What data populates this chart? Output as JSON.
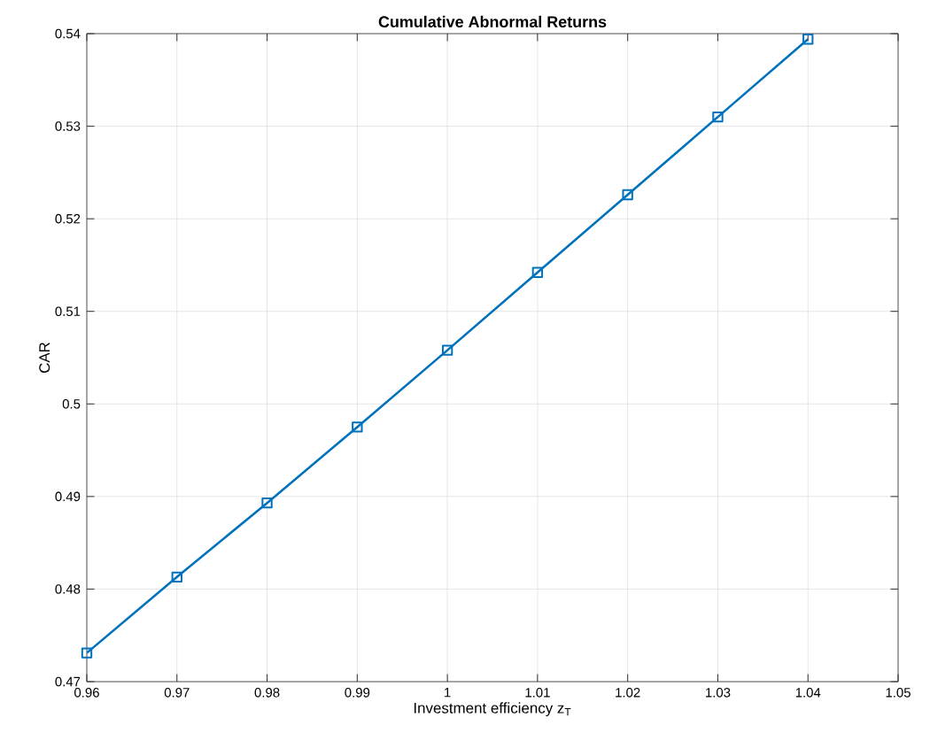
{
  "chart_data": {
    "type": "line",
    "title": "Cumulative Abnormal Returns",
    "xlabel": "Investment efficiency z$_{T}$",
    "ylabel": "CAR",
    "x": [
      0.96,
      0.97,
      0.98,
      0.99,
      1,
      1.01,
      1.02,
      1.03,
      1.04
    ],
    "series": [
      {
        "color": "#0072bd",
        "values": [
          0.4731,
          0.4813,
          0.4893,
          0.4975,
          0.5058,
          0.5142,
          0.5226,
          0.531,
          0.5394
        ]
      }
    ],
    "xlim": [
      0.96,
      1.05
    ],
    "ylim": [
      0.47,
      0.54
    ],
    "xticks": [
      0.96,
      0.97,
      0.98,
      0.99,
      1,
      1.01,
      1.02,
      1.03,
      1.04,
      1.05
    ],
    "yticks": [
      0.47,
      0.48,
      0.49,
      0.5,
      0.51,
      0.52,
      0.53,
      0.54
    ],
    "grid": true,
    "marker": "square",
    "line_style": "solid"
  }
}
